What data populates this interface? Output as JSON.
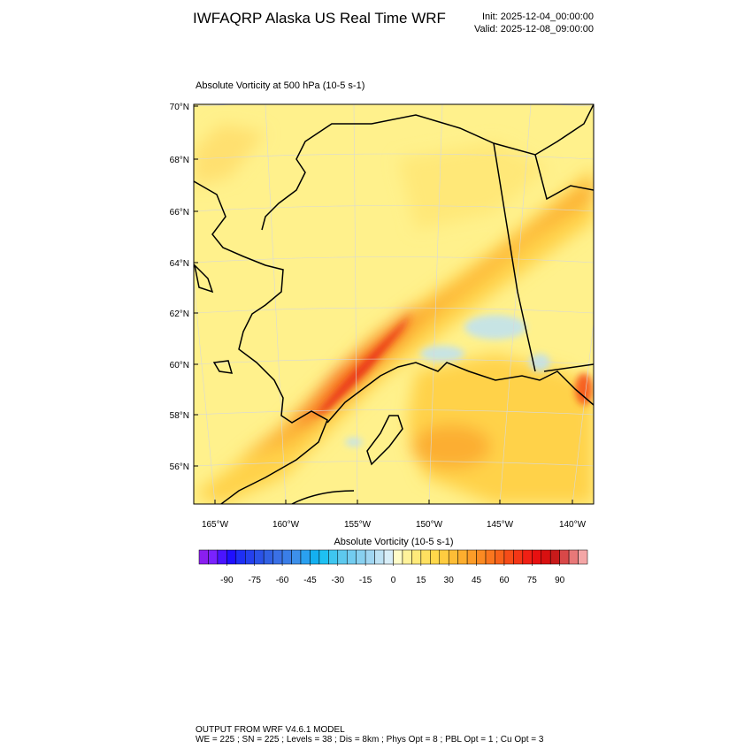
{
  "header": {
    "title": "IWFAQRP Alaska US Real Time WRF",
    "init": "Init: 2025-12-04_00:00:00",
    "valid": "Valid: 2025-12-08_09:00:00"
  },
  "map": {
    "title": "Absolute Vorticity at 500 hPa   (10-5 s-1)",
    "lat_labels": [
      "70°N",
      "68°N",
      "66°N",
      "64°N",
      "62°N",
      "60°N",
      "58°N",
      "56°N"
    ],
    "lon_labels": [
      "165°W",
      "160°W",
      "155°W",
      "150°W",
      "145°W",
      "140°W"
    ]
  },
  "colorbar": {
    "title": "Absolute Vorticity  (10-5 s-1)",
    "lim": [
      -105,
      105
    ],
    "ticks": [
      -90,
      -75,
      -60,
      -45,
      -30,
      -15,
      0,
      15,
      30,
      45,
      60,
      75,
      90
    ],
    "colors": [
      "#8a1ef0",
      "#7a22ff",
      "#4a14ff",
      "#1f0fff",
      "#1e2ff5",
      "#2440ee",
      "#2a52e8",
      "#3161e4",
      "#3a70e6",
      "#3a7ee8",
      "#3d90ea",
      "#2aa0f0",
      "#14b0f0",
      "#1ec0f2",
      "#3ec6f0",
      "#5dc9ee",
      "#72ccf0",
      "#88d0f0",
      "#a0d6f2",
      "#bee2f4",
      "#d8eef8",
      "#fffcc8",
      "#fff29a",
      "#ffea7a",
      "#ffe060",
      "#ffd84a",
      "#ffcc40",
      "#fdbd36",
      "#fdae2e",
      "#fc9c28",
      "#fb8a22",
      "#fa761e",
      "#f8621a",
      "#f64c18",
      "#f43616",
      "#f02014",
      "#e81010",
      "#d81010",
      "#c81a1a",
      "#d84848",
      "#e87878",
      "#f4a6a6"
    ]
  },
  "footer": {
    "line1": "OUTPUT FROM WRF V4.6.1 MODEL",
    "line2": "WE = 225 ; SN = 225 ; Levels = 38 ; Dis = 8km ; Phys Opt = 8 ; PBL Opt = 1 ; Cu Opt = 3"
  }
}
